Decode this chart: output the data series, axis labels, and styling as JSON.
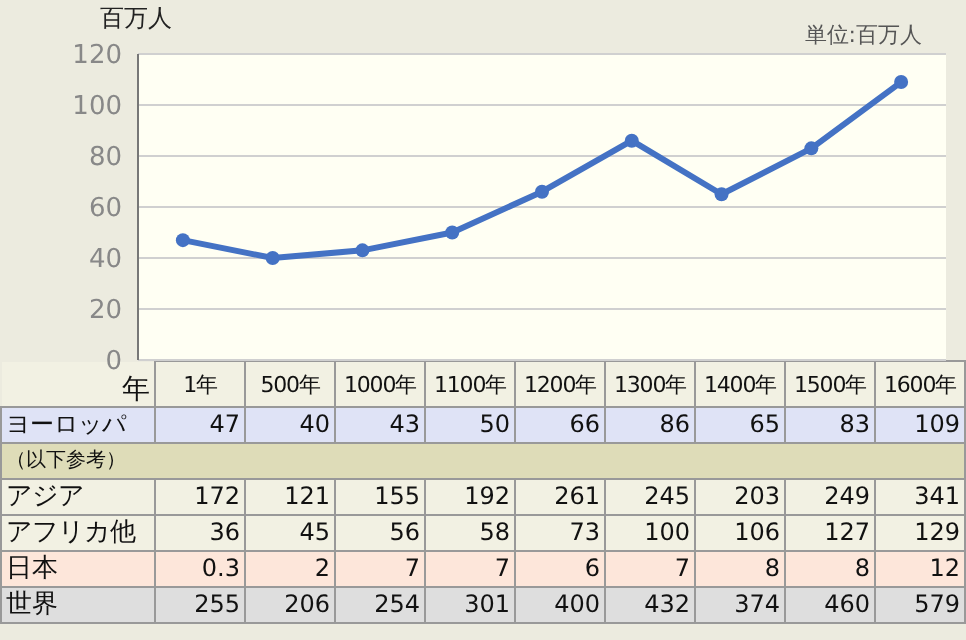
{
  "chart_data": {
    "type": "line",
    "ylabel": "百万人",
    "xlabel": "年",
    "categories": [
      "1年",
      "500年",
      "1000年",
      "1100年",
      "1200年",
      "1300年",
      "1400年",
      "1500年",
      "1600年"
    ],
    "series": [
      {
        "name": "ヨーロッパ",
        "color": "#4472c4",
        "values": [
          47,
          40,
          43,
          50,
          66,
          86,
          65,
          83,
          109
        ]
      }
    ],
    "ylim": [
      0,
      120
    ],
    "yticks": [
      0,
      20,
      40,
      60,
      80,
      100,
      120
    ],
    "grid": "y",
    "marker": "circle",
    "line_style": "solid",
    "data_labels": true,
    "legend": "bottom",
    "annotations": [
      "単位:百万人",
      "（以下参考）",
      "アジア",
      "172",
      "121",
      "155",
      "192",
      "261",
      "245",
      "203",
      "249",
      "341",
      "アフリカ他",
      "36",
      "45",
      "56",
      "58",
      "73",
      "100",
      "106",
      "127",
      "129",
      "日本",
      "0.3",
      "2",
      "7",
      "7",
      "6",
      "7",
      "8",
      "8",
      "12",
      "世界",
      "255",
      "206",
      "254",
      "301",
      "400",
      "432",
      "374",
      "460",
      "579"
    ]
  }
}
